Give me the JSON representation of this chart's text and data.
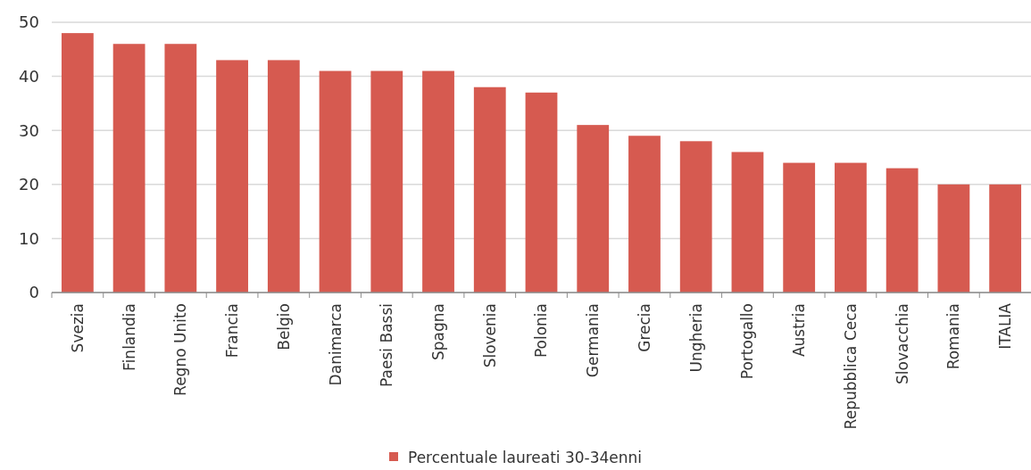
{
  "chart_data": {
    "type": "bar",
    "categories": [
      "Svezia",
      "Finlandia",
      "Regno Unito",
      "Francia",
      "Belgio",
      "Danimarca",
      "Paesi Bassi",
      "Spagna",
      "Slovenia",
      "Polonia",
      "Germania",
      "Grecia",
      "Ungheria",
      "Portogallo",
      "Austria",
      "Repubblica Ceca",
      "Slovacchia",
      "Romania",
      "ITALIA"
    ],
    "series": [
      {
        "name": "Percentuale laureati 30-34enni",
        "color": "#d65a50",
        "values": [
          48,
          46,
          46,
          43,
          43,
          41,
          41,
          41,
          38,
          37,
          31,
          29,
          28,
          26,
          24,
          24,
          23,
          20,
          20
        ]
      }
    ],
    "ylim": [
      0,
      50
    ],
    "yticks": [
      0,
      10,
      20,
      30,
      40,
      50
    ],
    "grid": "y",
    "legend": "bottom"
  }
}
